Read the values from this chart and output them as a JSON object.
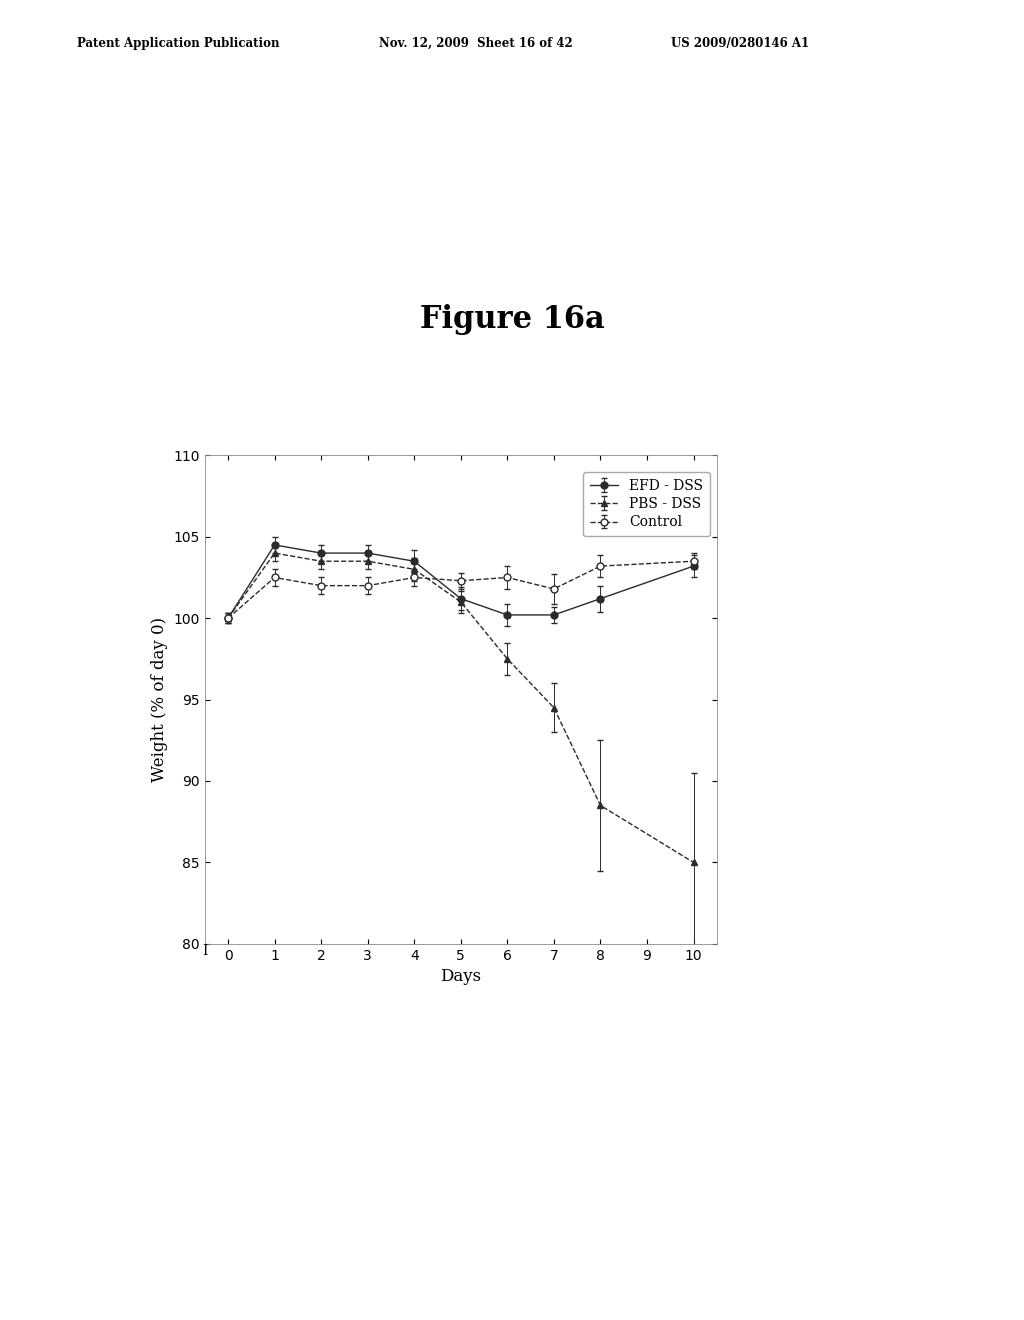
{
  "title": "Figure 16a",
  "header_left": "Patent Application Publication",
  "header_mid": "Nov. 12, 2009  Sheet 16 of 42",
  "header_right": "US 2009/0280146 A1",
  "xlabel": "Days",
  "ylabel": "Weight (% of day 0)",
  "ylim": [
    80,
    110
  ],
  "yticks": [
    80,
    85,
    90,
    95,
    100,
    105,
    110
  ],
  "xlim": [
    -0.5,
    10.5
  ],
  "xticks": [
    0,
    1,
    2,
    3,
    4,
    5,
    6,
    7,
    8,
    9,
    10
  ],
  "days": [
    0,
    1,
    2,
    3,
    4,
    5,
    6,
    7,
    8,
    10
  ],
  "efd_dss": [
    100,
    104.5,
    104.0,
    104.0,
    103.5,
    101.2,
    100.2,
    100.2,
    101.2,
    103.2
  ],
  "efd_dss_err": [
    0.3,
    0.5,
    0.5,
    0.5,
    0.7,
    0.7,
    0.7,
    0.5,
    0.8,
    0.7
  ],
  "pbs_dss": [
    100,
    104.0,
    103.5,
    103.5,
    103.0,
    101.0,
    97.5,
    94.5,
    88.5,
    85.0
  ],
  "pbs_dss_err": [
    0.3,
    0.5,
    0.5,
    0.5,
    0.7,
    0.7,
    1.0,
    1.5,
    4.0,
    5.5
  ],
  "control": [
    100,
    102.5,
    102.0,
    102.0,
    102.5,
    102.3,
    102.5,
    101.8,
    103.2,
    103.5
  ],
  "control_err": [
    0.3,
    0.5,
    0.5,
    0.5,
    0.5,
    0.5,
    0.7,
    0.9,
    0.7,
    0.5
  ],
  "legend_labels": [
    "EFD - DSS",
    "PBS - DSS",
    "Control"
  ],
  "line_color": "#2b2b2b",
  "background_color": "#ffffff",
  "title_fontsize": 22,
  "label_fontsize": 12,
  "tick_fontsize": 10,
  "legend_fontsize": 10,
  "header_fontsize": 8.5
}
